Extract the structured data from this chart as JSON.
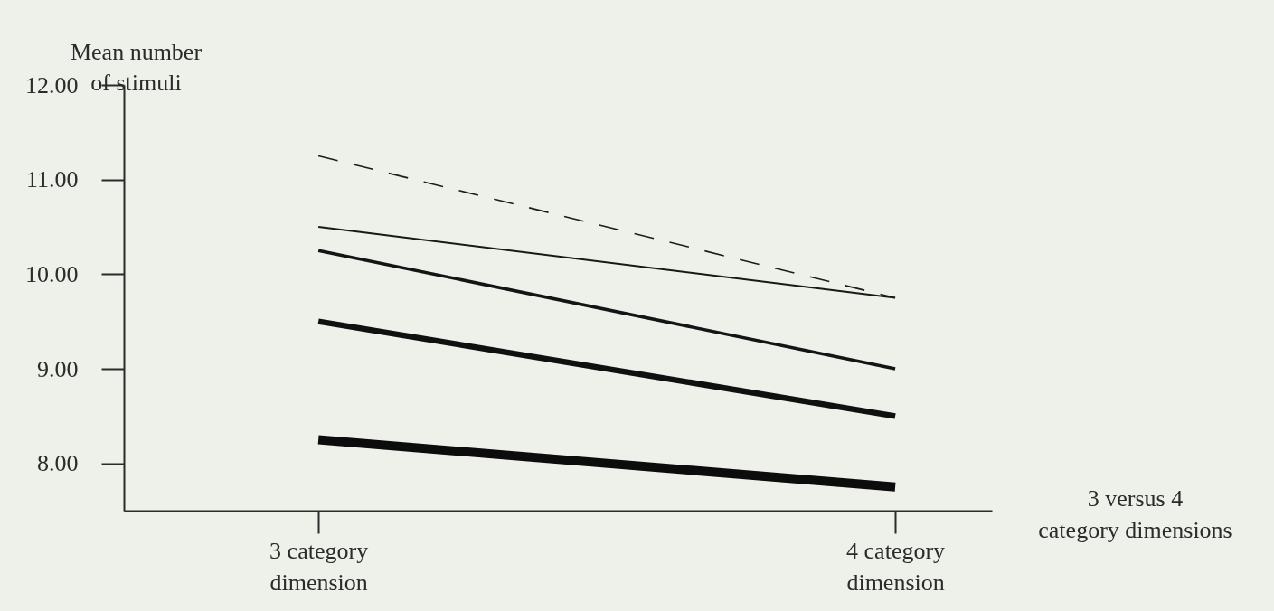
{
  "chart_data": {
    "type": "line",
    "xlabel": "3 versus 4 category dimensions",
    "ylabel": "Mean number of stimuli",
    "categories": [
      "3 category dimension",
      "4 category dimension"
    ],
    "ylim": [
      7.5,
      12
    ],
    "yticks": [
      {
        "value": 8,
        "label": "8.00"
      },
      {
        "value": 9,
        "label": "9.00"
      },
      {
        "value": 10,
        "label": "10.00"
      },
      {
        "value": 11,
        "label": "11.00"
      },
      {
        "value": 12,
        "label": "12.00"
      }
    ],
    "legend": false,
    "series": [
      {
        "color": "#1c1c1c",
        "line_style": "dashed",
        "values": [
          11.25,
          9.75
        ]
      },
      {
        "color": "#181818",
        "line_style": "solid",
        "values": [
          10.5,
          9.75
        ]
      },
      {
        "color": "#141414",
        "line_style": "solid",
        "values": [
          10.25,
          9.0
        ]
      },
      {
        "color": "#101010",
        "line_style": "solid",
        "values": [
          9.5,
          8.5
        ]
      },
      {
        "color": "#0c0c0c",
        "line_style": "solid",
        "values": [
          8.25,
          7.75
        ]
      }
    ]
  }
}
